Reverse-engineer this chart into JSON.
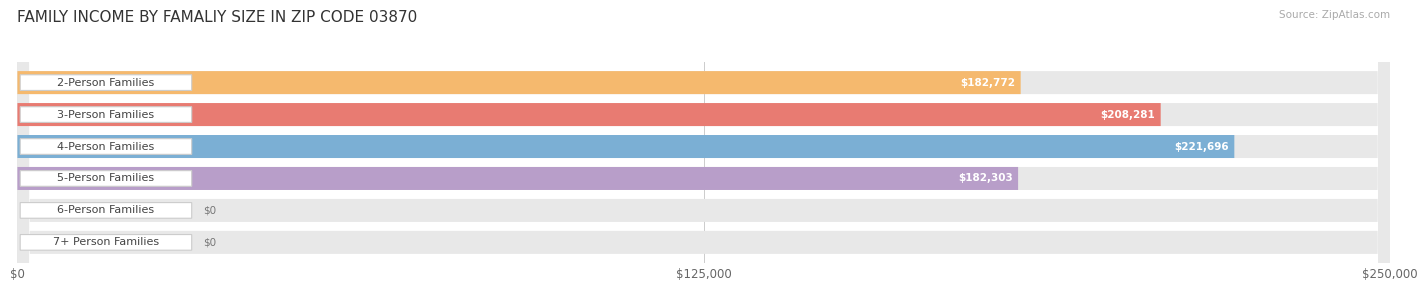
{
  "title": "FAMILY INCOME BY FAMALIY SIZE IN ZIP CODE 03870",
  "source": "Source: ZipAtlas.com",
  "categories": [
    "2-Person Families",
    "3-Person Families",
    "4-Person Families",
    "5-Person Families",
    "6-Person Families",
    "7+ Person Families"
  ],
  "values": [
    182772,
    208281,
    221696,
    182303,
    0,
    0
  ],
  "bar_colors": [
    "#f5b96e",
    "#e87b72",
    "#7bafd4",
    "#b89ec9",
    "#7ececa",
    "#b0b8d8"
  ],
  "bar_bg_color": "#e8e8e8",
  "value_labels": [
    "$182,772",
    "$208,281",
    "$221,696",
    "$182,303",
    "$0",
    "$0"
  ],
  "xlim_max": 250000,
  "xtick_labels": [
    "$0",
    "$125,000",
    "$250,000"
  ],
  "xtick_values": [
    0,
    125000,
    250000
  ],
  "background_color": "#ffffff",
  "title_fontsize": 11,
  "label_fontsize": 8.0,
  "value_fontsize": 7.5,
  "source_fontsize": 7.5
}
